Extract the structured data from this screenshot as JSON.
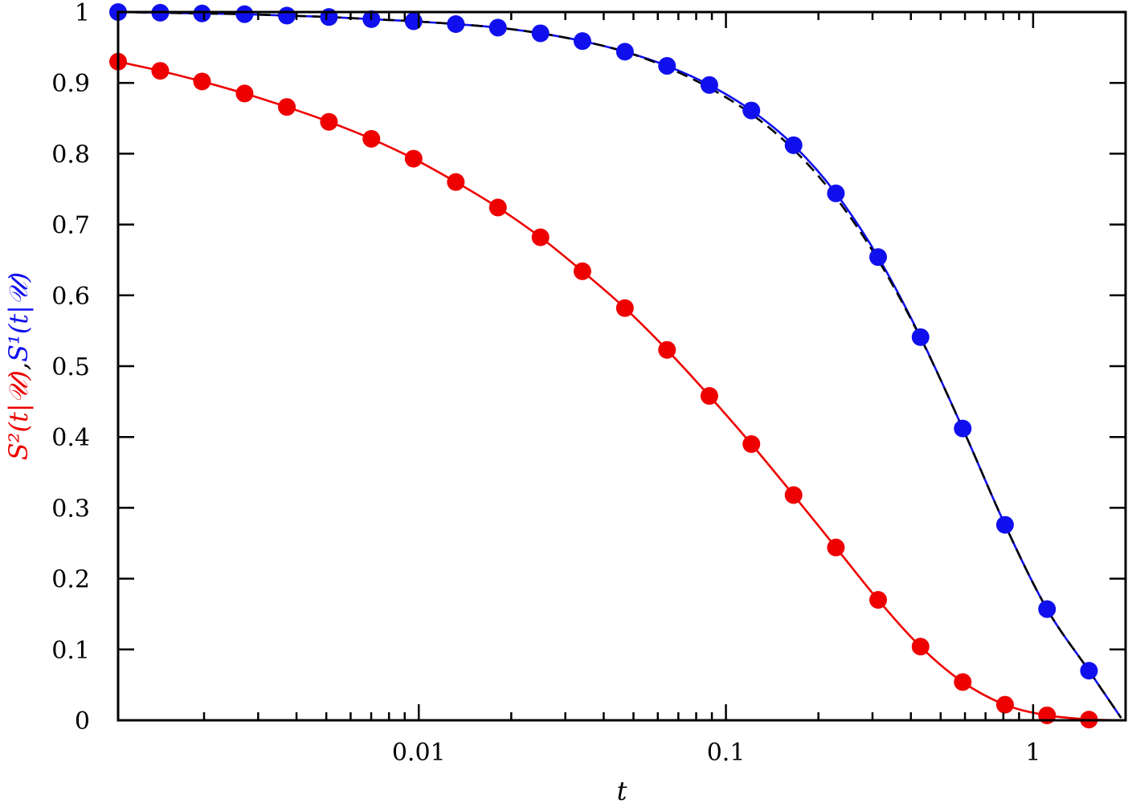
{
  "chart_data": {
    "type": "scatter",
    "title": "",
    "xlabel": "t",
    "ylabel": {
      "red_part": "S²(t|𝒰)",
      "separator": ",",
      "blue_part": "S¹(t|𝒰)"
    },
    "x_scale": "log",
    "xlim": [
      0.00105,
      2.0
    ],
    "ylim": [
      0,
      1
    ],
    "x_ticks": [
      {
        "value": 0.01,
        "label": "0.01"
      },
      {
        "value": 0.1,
        "label": "0.1"
      },
      {
        "value": 1,
        "label": "1"
      }
    ],
    "y_ticks": [
      {
        "value": 0,
        "label": "0"
      },
      {
        "value": 0.1,
        "label": "0.1"
      },
      {
        "value": 0.2,
        "label": "0.2"
      },
      {
        "value": 0.3,
        "label": "0.3"
      },
      {
        "value": 0.4,
        "label": "0.4"
      },
      {
        "value": 0.5,
        "label": "0.5"
      },
      {
        "value": 0.6,
        "label": "0.6"
      },
      {
        "value": 0.7,
        "label": "0.7"
      },
      {
        "value": 0.8,
        "label": "0.8"
      },
      {
        "value": 0.9,
        "label": "0.9"
      },
      {
        "value": 1,
        "label": "1"
      }
    ],
    "grid": false,
    "legend": "none",
    "series": [
      {
        "color": "#ee0000",
        "marker": "circle",
        "line": "solid",
        "x": [
          0.00105,
          0.00144,
          0.00197,
          0.00271,
          0.00372,
          0.0051,
          0.00701,
          0.00962,
          0.0132,
          0.0181,
          0.0249,
          0.0341,
          0.0469,
          0.0643,
          0.0883,
          0.121,
          0.166,
          0.228,
          0.313,
          0.43,
          0.59,
          0.81,
          1.11,
          1.52
        ],
        "y": [
          0.93,
          0.917,
          0.902,
          0.885,
          0.866,
          0.845,
          0.821,
          0.793,
          0.76,
          0.724,
          0.682,
          0.634,
          0.582,
          0.523,
          0.458,
          0.39,
          0.318,
          0.244,
          0.17,
          0.104,
          0.054,
          0.022,
          0.007,
          0.001
        ]
      },
      {
        "color": "#1010ee",
        "marker": "circle",
        "line": "solid",
        "x": [
          0.00105,
          0.00144,
          0.00197,
          0.00271,
          0.00372,
          0.0051,
          0.00701,
          0.00962,
          0.0132,
          0.0181,
          0.0249,
          0.0341,
          0.0469,
          0.0643,
          0.0883,
          0.121,
          0.166,
          0.228,
          0.313,
          0.43,
          0.59,
          0.81,
          1.11,
          1.52
        ],
        "y": [
          1.0,
          0.999,
          0.998,
          0.997,
          0.995,
          0.993,
          0.99,
          0.987,
          0.983,
          0.978,
          0.97,
          0.959,
          0.944,
          0.924,
          0.897,
          0.861,
          0.812,
          0.744,
          0.654,
          0.541,
          0.412,
          0.276,
          0.157,
          0.07
        ]
      }
    ],
    "reference_curve": {
      "color": "#000000",
      "line": "dashed",
      "x": [
        0.00105,
        0.00144,
        0.00197,
        0.00271,
        0.00372,
        0.0051,
        0.00701,
        0.00962,
        0.0132,
        0.0181,
        0.0249,
        0.0341,
        0.0469,
        0.0643,
        0.0883,
        0.121,
        0.166,
        0.228,
        0.313,
        0.43,
        0.59,
        0.81,
        1.11,
        1.52
      ],
      "y": [
        1.0,
        0.999,
        0.998,
        0.997,
        0.995,
        0.993,
        0.99,
        0.987,
        0.983,
        0.978,
        0.97,
        0.959,
        0.944,
        0.922,
        0.893,
        0.856,
        0.806,
        0.738,
        0.65,
        0.54,
        0.412,
        0.276,
        0.157,
        0.07
      ]
    }
  }
}
